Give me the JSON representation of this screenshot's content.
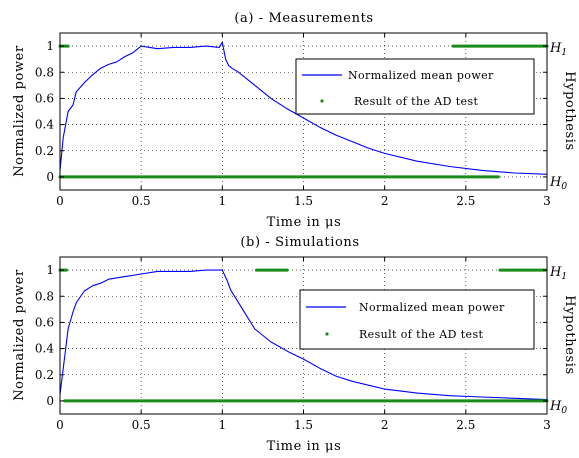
{
  "chart_data": [
    {
      "type": "line",
      "title": "(a) - Measurements",
      "xlabel": "Time in μs",
      "ylabel": "Normalized power",
      "ylabel_right": "Hypothesis",
      "xlim": [
        0,
        3
      ],
      "ylim": [
        -0.1,
        1.1
      ],
      "xticks": [
        "0",
        "0.5",
        "1",
        "1.5",
        "2",
        "2.5",
        "3"
      ],
      "yticks": [
        "0",
        "0.2",
        "0.4",
        "0.6",
        "0.8",
        "1"
      ],
      "right_ticks": {
        "h1": "H1",
        "h0": "H0"
      },
      "grid": true,
      "legend_position": "center-right",
      "series": [
        {
          "name": "Normalized mean power",
          "color": "#0000ff",
          "x": [
            0,
            0.02,
            0.05,
            0.08,
            0.1,
            0.15,
            0.2,
            0.25,
            0.3,
            0.35,
            0.4,
            0.45,
            0.5,
            0.6,
            0.7,
            0.8,
            0.9,
            0.98,
            1.0,
            1.02,
            1.04,
            1.06,
            1.1,
            1.2,
            1.3,
            1.4,
            1.5,
            1.6,
            1.7,
            1.8,
            1.9,
            2.0,
            2.2,
            2.4,
            2.6,
            2.8,
            3.0
          ],
          "y": [
            0.05,
            0.3,
            0.5,
            0.55,
            0.65,
            0.72,
            0.78,
            0.83,
            0.86,
            0.88,
            0.92,
            0.95,
            1.0,
            0.98,
            0.99,
            0.99,
            1.0,
            0.99,
            1.03,
            0.9,
            0.85,
            0.83,
            0.8,
            0.7,
            0.6,
            0.52,
            0.45,
            0.38,
            0.32,
            0.27,
            0.22,
            0.18,
            0.12,
            0.08,
            0.05,
            0.03,
            0.02
          ]
        },
        {
          "name": "Result of the AD test",
          "color": "#1a8a1a",
          "marker": "dot",
          "h1_x": [
            0,
            0.05,
            2.42,
            2.47,
            2.52,
            2.57,
            2.67,
            2.7,
            2.72,
            2.74,
            2.76,
            2.78,
            2.8,
            2.82,
            2.84,
            2.86,
            2.88,
            2.9,
            2.92,
            2.94,
            2.96,
            2.98,
            3.0
          ],
          "h0_x": [
            0,
            0.1,
            0.2,
            0.3,
            0.4,
            0.5,
            0.6,
            0.7,
            0.8,
            0.9,
            1.0,
            1.1,
            1.2,
            1.3,
            1.4,
            1.5,
            1.6,
            1.7,
            1.8,
            1.9,
            2.0,
            2.1,
            2.2,
            2.3,
            2.4,
            2.5,
            2.6,
            2.7
          ]
        }
      ]
    },
    {
      "type": "line",
      "title": "(b) - Simulations",
      "xlabel": "Time in μs",
      "ylabel": "Normalized power",
      "ylabel_right": "Hypothesis",
      "xlim": [
        0,
        3
      ],
      "ylim": [
        -0.1,
        1.1
      ],
      "xticks": [
        "0",
        "0.5",
        "1",
        "1.5",
        "2",
        "2.5",
        "3"
      ],
      "yticks": [
        "0",
        "0.2",
        "0.4",
        "0.6",
        "0.8",
        "1"
      ],
      "right_ticks": {
        "h1": "H1",
        "h0": "H0"
      },
      "grid": true,
      "legend_position": "center-right",
      "series": [
        {
          "name": "Normalized mean power",
          "color": "#0000ff",
          "x": [
            0,
            0.03,
            0.05,
            0.08,
            0.1,
            0.15,
            0.2,
            0.25,
            0.3,
            0.4,
            0.5,
            0.6,
            0.7,
            0.8,
            0.9,
            0.95,
            1.0,
            1.03,
            1.05,
            1.1,
            1.15,
            1.2,
            1.3,
            1.4,
            1.5,
            1.6,
            1.7,
            1.8,
            2.0,
            2.2,
            2.4,
            2.6,
            2.8,
            3.0
          ],
          "y": [
            0.05,
            0.35,
            0.55,
            0.68,
            0.75,
            0.84,
            0.88,
            0.9,
            0.93,
            0.95,
            0.97,
            0.99,
            0.99,
            0.99,
            1.0,
            1.0,
            1.0,
            0.92,
            0.85,
            0.75,
            0.65,
            0.55,
            0.45,
            0.38,
            0.32,
            0.25,
            0.19,
            0.15,
            0.09,
            0.06,
            0.04,
            0.03,
            0.02,
            0.01
          ]
        },
        {
          "name": "Result of the AD test",
          "color": "#1a8a1a",
          "marker": "dot",
          "h1_x": [
            0,
            0.04,
            1.21,
            1.24,
            1.27,
            1.3,
            1.34,
            1.37,
            1.4,
            2.71,
            2.74,
            2.77,
            2.8,
            2.83,
            2.87,
            2.92,
            2.96,
            2.99
          ],
          "h0_x": [
            0.03,
            0.1,
            0.2,
            0.3,
            0.4,
            0.5,
            0.6,
            0.7,
            0.8,
            0.9,
            1.0,
            1.1,
            1.2,
            1.3,
            1.4,
            1.5,
            1.6,
            1.7,
            1.8,
            1.9,
            2.0,
            2.1,
            2.2,
            2.3,
            2.4,
            2.5,
            2.6,
            2.7,
            2.8,
            2.9,
            3.0
          ]
        }
      ]
    }
  ]
}
